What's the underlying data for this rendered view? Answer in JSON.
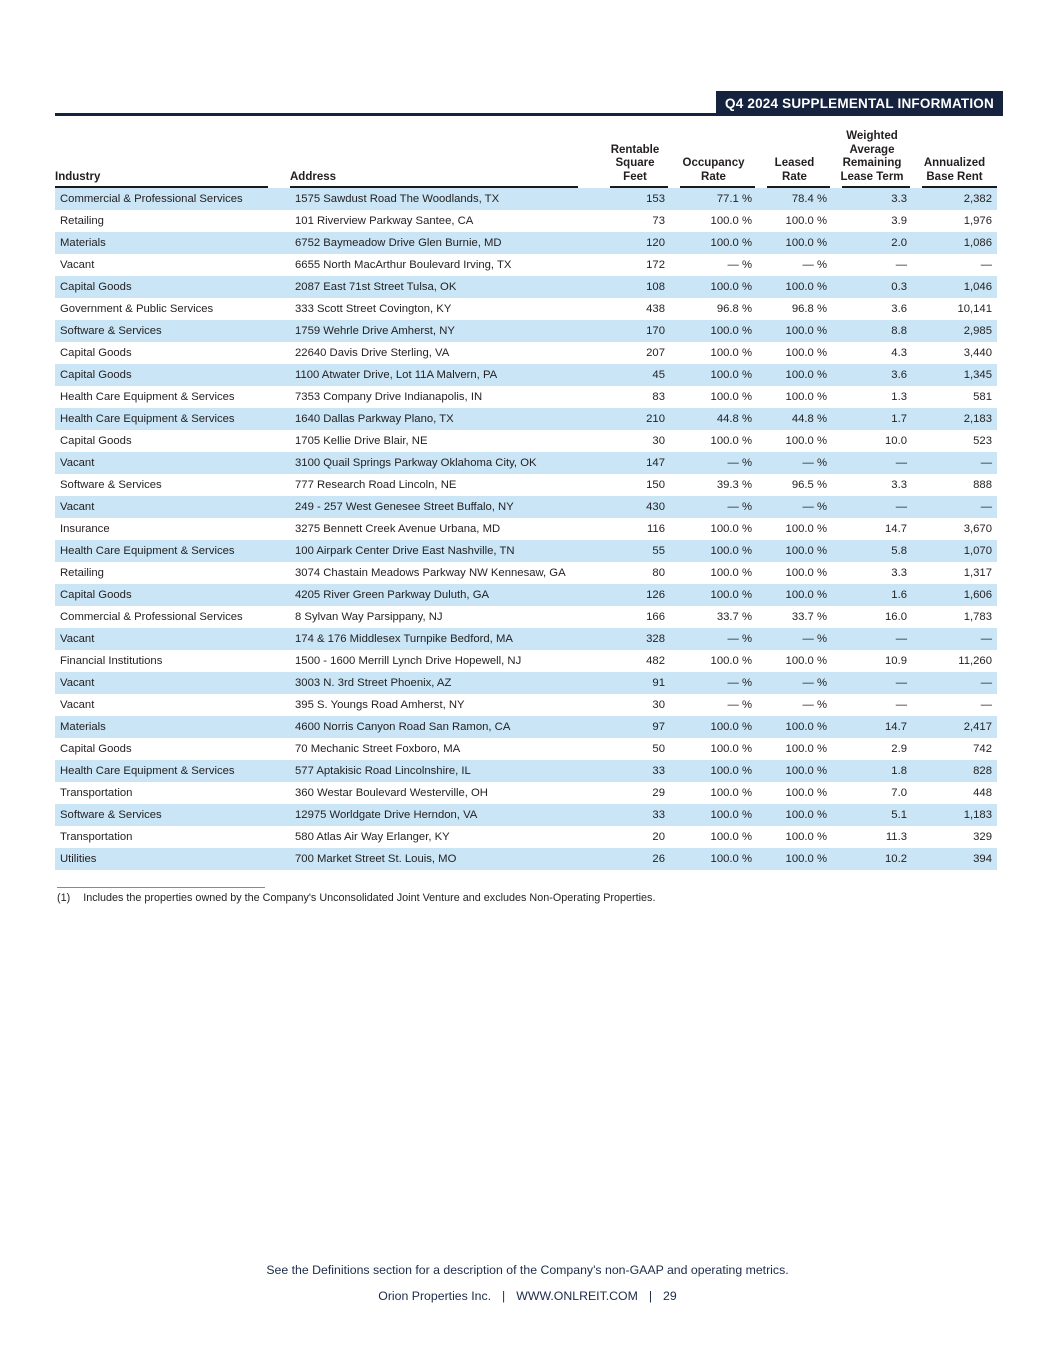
{
  "header": {
    "banner": "Q4 2024 SUPPLEMENTAL INFORMATION"
  },
  "colors": {
    "banner_background": "#16233E",
    "row_highlight": "#C9E5F6",
    "table_text": "#231F20",
    "footer_text": "#1C2B49"
  },
  "table": {
    "columns": [
      {
        "key": "industry",
        "label": "Industry"
      },
      {
        "key": "address",
        "label": "Address"
      },
      {
        "key": "rentable_square_feet",
        "label": "Rentable\nSquare\nFeet"
      },
      {
        "key": "occupancy_rate",
        "label": "Occupancy\nRate"
      },
      {
        "key": "leased_rate",
        "label": "Leased\nRate"
      },
      {
        "key": "lease_term",
        "label": "Weighted\nAverage\nRemaining\nLease Term"
      },
      {
        "key": "base_rent",
        "label": "Annualized\nBase Rent"
      }
    ],
    "rows": [
      {
        "industry": "Commercial & Professional Services",
        "address": "1575 Sawdust Road The Woodlands, TX",
        "rentable_square_feet": "153",
        "occupancy_rate": "77.1 %",
        "leased_rate": "78.4 %",
        "lease_term": "3.3",
        "base_rent": "2,382"
      },
      {
        "industry": "Retailing",
        "address": "101 Riverview Parkway Santee, CA",
        "rentable_square_feet": "73",
        "occupancy_rate": "100.0 %",
        "leased_rate": "100.0 %",
        "lease_term": "3.9",
        "base_rent": "1,976"
      },
      {
        "industry": "Materials",
        "address": "6752 Baymeadow Drive Glen Burnie, MD",
        "rentable_square_feet": "120",
        "occupancy_rate": "100.0 %",
        "leased_rate": "100.0 %",
        "lease_term": "2.0",
        "base_rent": "1,086"
      },
      {
        "industry": "Vacant",
        "address": "6655 North MacArthur Boulevard Irving, TX",
        "rentable_square_feet": "172",
        "occupancy_rate": "— %",
        "leased_rate": "— %",
        "lease_term": "—",
        "base_rent": "—"
      },
      {
        "industry": "Capital Goods",
        "address": "2087 East 71st Street Tulsa, OK",
        "rentable_square_feet": "108",
        "occupancy_rate": "100.0 %",
        "leased_rate": "100.0 %",
        "lease_term": "0.3",
        "base_rent": "1,046"
      },
      {
        "industry": "Government & Public Services",
        "address": "333 Scott Street Covington, KY",
        "rentable_square_feet": "438",
        "occupancy_rate": "96.8 %",
        "leased_rate": "96.8 %",
        "lease_term": "3.6",
        "base_rent": "10,141"
      },
      {
        "industry": "Software & Services",
        "address": "1759 Wehrle Drive Amherst, NY",
        "rentable_square_feet": "170",
        "occupancy_rate": "100.0 %",
        "leased_rate": "100.0 %",
        "lease_term": "8.8",
        "base_rent": "2,985"
      },
      {
        "industry": "Capital Goods",
        "address": "22640 Davis Drive Sterling, VA",
        "rentable_square_feet": "207",
        "occupancy_rate": "100.0 %",
        "leased_rate": "100.0 %",
        "lease_term": "4.3",
        "base_rent": "3,440"
      },
      {
        "industry": "Capital Goods",
        "address": "1100 Atwater Drive, Lot 11A Malvern, PA",
        "rentable_square_feet": "45",
        "occupancy_rate": "100.0 %",
        "leased_rate": "100.0 %",
        "lease_term": "3.6",
        "base_rent": "1,345"
      },
      {
        "industry": "Health Care Equipment & Services",
        "address": "7353 Company Drive Indianapolis, IN",
        "rentable_square_feet": "83",
        "occupancy_rate": "100.0 %",
        "leased_rate": "100.0 %",
        "lease_term": "1.3",
        "base_rent": "581"
      },
      {
        "industry": "Health Care Equipment & Services",
        "address": "1640 Dallas Parkway Plano, TX",
        "rentable_square_feet": "210",
        "occupancy_rate": "44.8 %",
        "leased_rate": "44.8 %",
        "lease_term": "1.7",
        "base_rent": "2,183"
      },
      {
        "industry": "Capital Goods",
        "address": "1705 Kellie Drive Blair, NE",
        "rentable_square_feet": "30",
        "occupancy_rate": "100.0 %",
        "leased_rate": "100.0 %",
        "lease_term": "10.0",
        "base_rent": "523"
      },
      {
        "industry": "Vacant",
        "address": "3100 Quail Springs Parkway Oklahoma City, OK",
        "rentable_square_feet": "147",
        "occupancy_rate": "— %",
        "leased_rate": "— %",
        "lease_term": "—",
        "base_rent": "—"
      },
      {
        "industry": "Software & Services",
        "address": "777 Research Road Lincoln, NE",
        "rentable_square_feet": "150",
        "occupancy_rate": "39.3 %",
        "leased_rate": "96.5 %",
        "lease_term": "3.3",
        "base_rent": "888"
      },
      {
        "industry": "Vacant",
        "address": "249 - 257 West Genesee Street Buffalo, NY",
        "rentable_square_feet": "430",
        "occupancy_rate": "— %",
        "leased_rate": "— %",
        "lease_term": "—",
        "base_rent": "—"
      },
      {
        "industry": "Insurance",
        "address": "3275 Bennett Creek Avenue Urbana, MD",
        "rentable_square_feet": "116",
        "occupancy_rate": "100.0 %",
        "leased_rate": "100.0 %",
        "lease_term": "14.7",
        "base_rent": "3,670"
      },
      {
        "industry": "Health Care Equipment & Services",
        "address": "100 Airpark Center Drive East Nashville, TN",
        "rentable_square_feet": "55",
        "occupancy_rate": "100.0 %",
        "leased_rate": "100.0 %",
        "lease_term": "5.8",
        "base_rent": "1,070"
      },
      {
        "industry": "Retailing",
        "address": "3074 Chastain Meadows Parkway NW Kennesaw, GA",
        "rentable_square_feet": "80",
        "occupancy_rate": "100.0 %",
        "leased_rate": "100.0 %",
        "lease_term": "3.3",
        "base_rent": "1,317"
      },
      {
        "industry": "Capital Goods",
        "address": "4205 River Green Parkway Duluth, GA",
        "rentable_square_feet": "126",
        "occupancy_rate": "100.0 %",
        "leased_rate": "100.0 %",
        "lease_term": "1.6",
        "base_rent": "1,606"
      },
      {
        "industry": "Commercial & Professional Services",
        "address": "8 Sylvan Way Parsippany, NJ",
        "rentable_square_feet": "166",
        "occupancy_rate": "33.7 %",
        "leased_rate": "33.7 %",
        "lease_term": "16.0",
        "base_rent": "1,783"
      },
      {
        "industry": "Vacant",
        "address": "174 & 176 Middlesex Turnpike Bedford, MA",
        "rentable_square_feet": "328",
        "occupancy_rate": "— %",
        "leased_rate": "— %",
        "lease_term": "—",
        "base_rent": "—"
      },
      {
        "industry": "Financial Institutions",
        "address": "1500 - 1600 Merrill Lynch Drive Hopewell, NJ",
        "rentable_square_feet": "482",
        "occupancy_rate": "100.0 %",
        "leased_rate": "100.0 %",
        "lease_term": "10.9",
        "base_rent": "11,260"
      },
      {
        "industry": "Vacant",
        "address": "3003 N. 3rd Street Phoenix, AZ",
        "rentable_square_feet": "91",
        "occupancy_rate": "— %",
        "leased_rate": "— %",
        "lease_term": "—",
        "base_rent": "—"
      },
      {
        "industry": "Vacant",
        "address": "395 S. Youngs Road Amherst, NY",
        "rentable_square_feet": "30",
        "occupancy_rate": "— %",
        "leased_rate": "— %",
        "lease_term": "—",
        "base_rent": "—"
      },
      {
        "industry": "Materials",
        "address": "4600 Norris Canyon Road San Ramon, CA",
        "rentable_square_feet": "97",
        "occupancy_rate": "100.0 %",
        "leased_rate": "100.0 %",
        "lease_term": "14.7",
        "base_rent": "2,417"
      },
      {
        "industry": "Capital Goods",
        "address": "70 Mechanic Street Foxboro, MA",
        "rentable_square_feet": "50",
        "occupancy_rate": "100.0 %",
        "leased_rate": "100.0 %",
        "lease_term": "2.9",
        "base_rent": "742"
      },
      {
        "industry": "Health Care Equipment & Services",
        "address": "577 Aptakisic Road Lincolnshire, IL",
        "rentable_square_feet": "33",
        "occupancy_rate": "100.0 %",
        "leased_rate": "100.0 %",
        "lease_term": "1.8",
        "base_rent": "828"
      },
      {
        "industry": "Transportation",
        "address": "360 Westar Boulevard Westerville, OH",
        "rentable_square_feet": "29",
        "occupancy_rate": "100.0 %",
        "leased_rate": "100.0 %",
        "lease_term": "7.0",
        "base_rent": "448"
      },
      {
        "industry": "Software & Services",
        "address": "12975 Worldgate Drive Herndon, VA",
        "rentable_square_feet": "33",
        "occupancy_rate": "100.0 %",
        "leased_rate": "100.0 %",
        "lease_term": "5.1",
        "base_rent": "1,183"
      },
      {
        "industry": "Transportation",
        "address": "580 Atlas Air Way Erlanger, KY",
        "rentable_square_feet": "20",
        "occupancy_rate": "100.0 %",
        "leased_rate": "100.0 %",
        "lease_term": "11.3",
        "base_rent": "329"
      },
      {
        "industry": "Utilities",
        "address": "700 Market Street St. Louis, MO",
        "rentable_square_feet": "26",
        "occupancy_rate": "100.0 %",
        "leased_rate": "100.0 %",
        "lease_term": "10.2",
        "base_rent": "394"
      }
    ]
  },
  "footnote": {
    "marker": "(1)",
    "text": "Includes the properties owned by the Company's Unconsolidated Joint Venture and excludes Non-Operating Properties."
  },
  "footer": {
    "definitions_note": "See the Definitions section for a description of the Company's non-GAAP and operating metrics.",
    "company": "Orion Properties Inc.",
    "separator": "|",
    "website": "WWW.ONLREIT.COM",
    "page_number": "29"
  }
}
